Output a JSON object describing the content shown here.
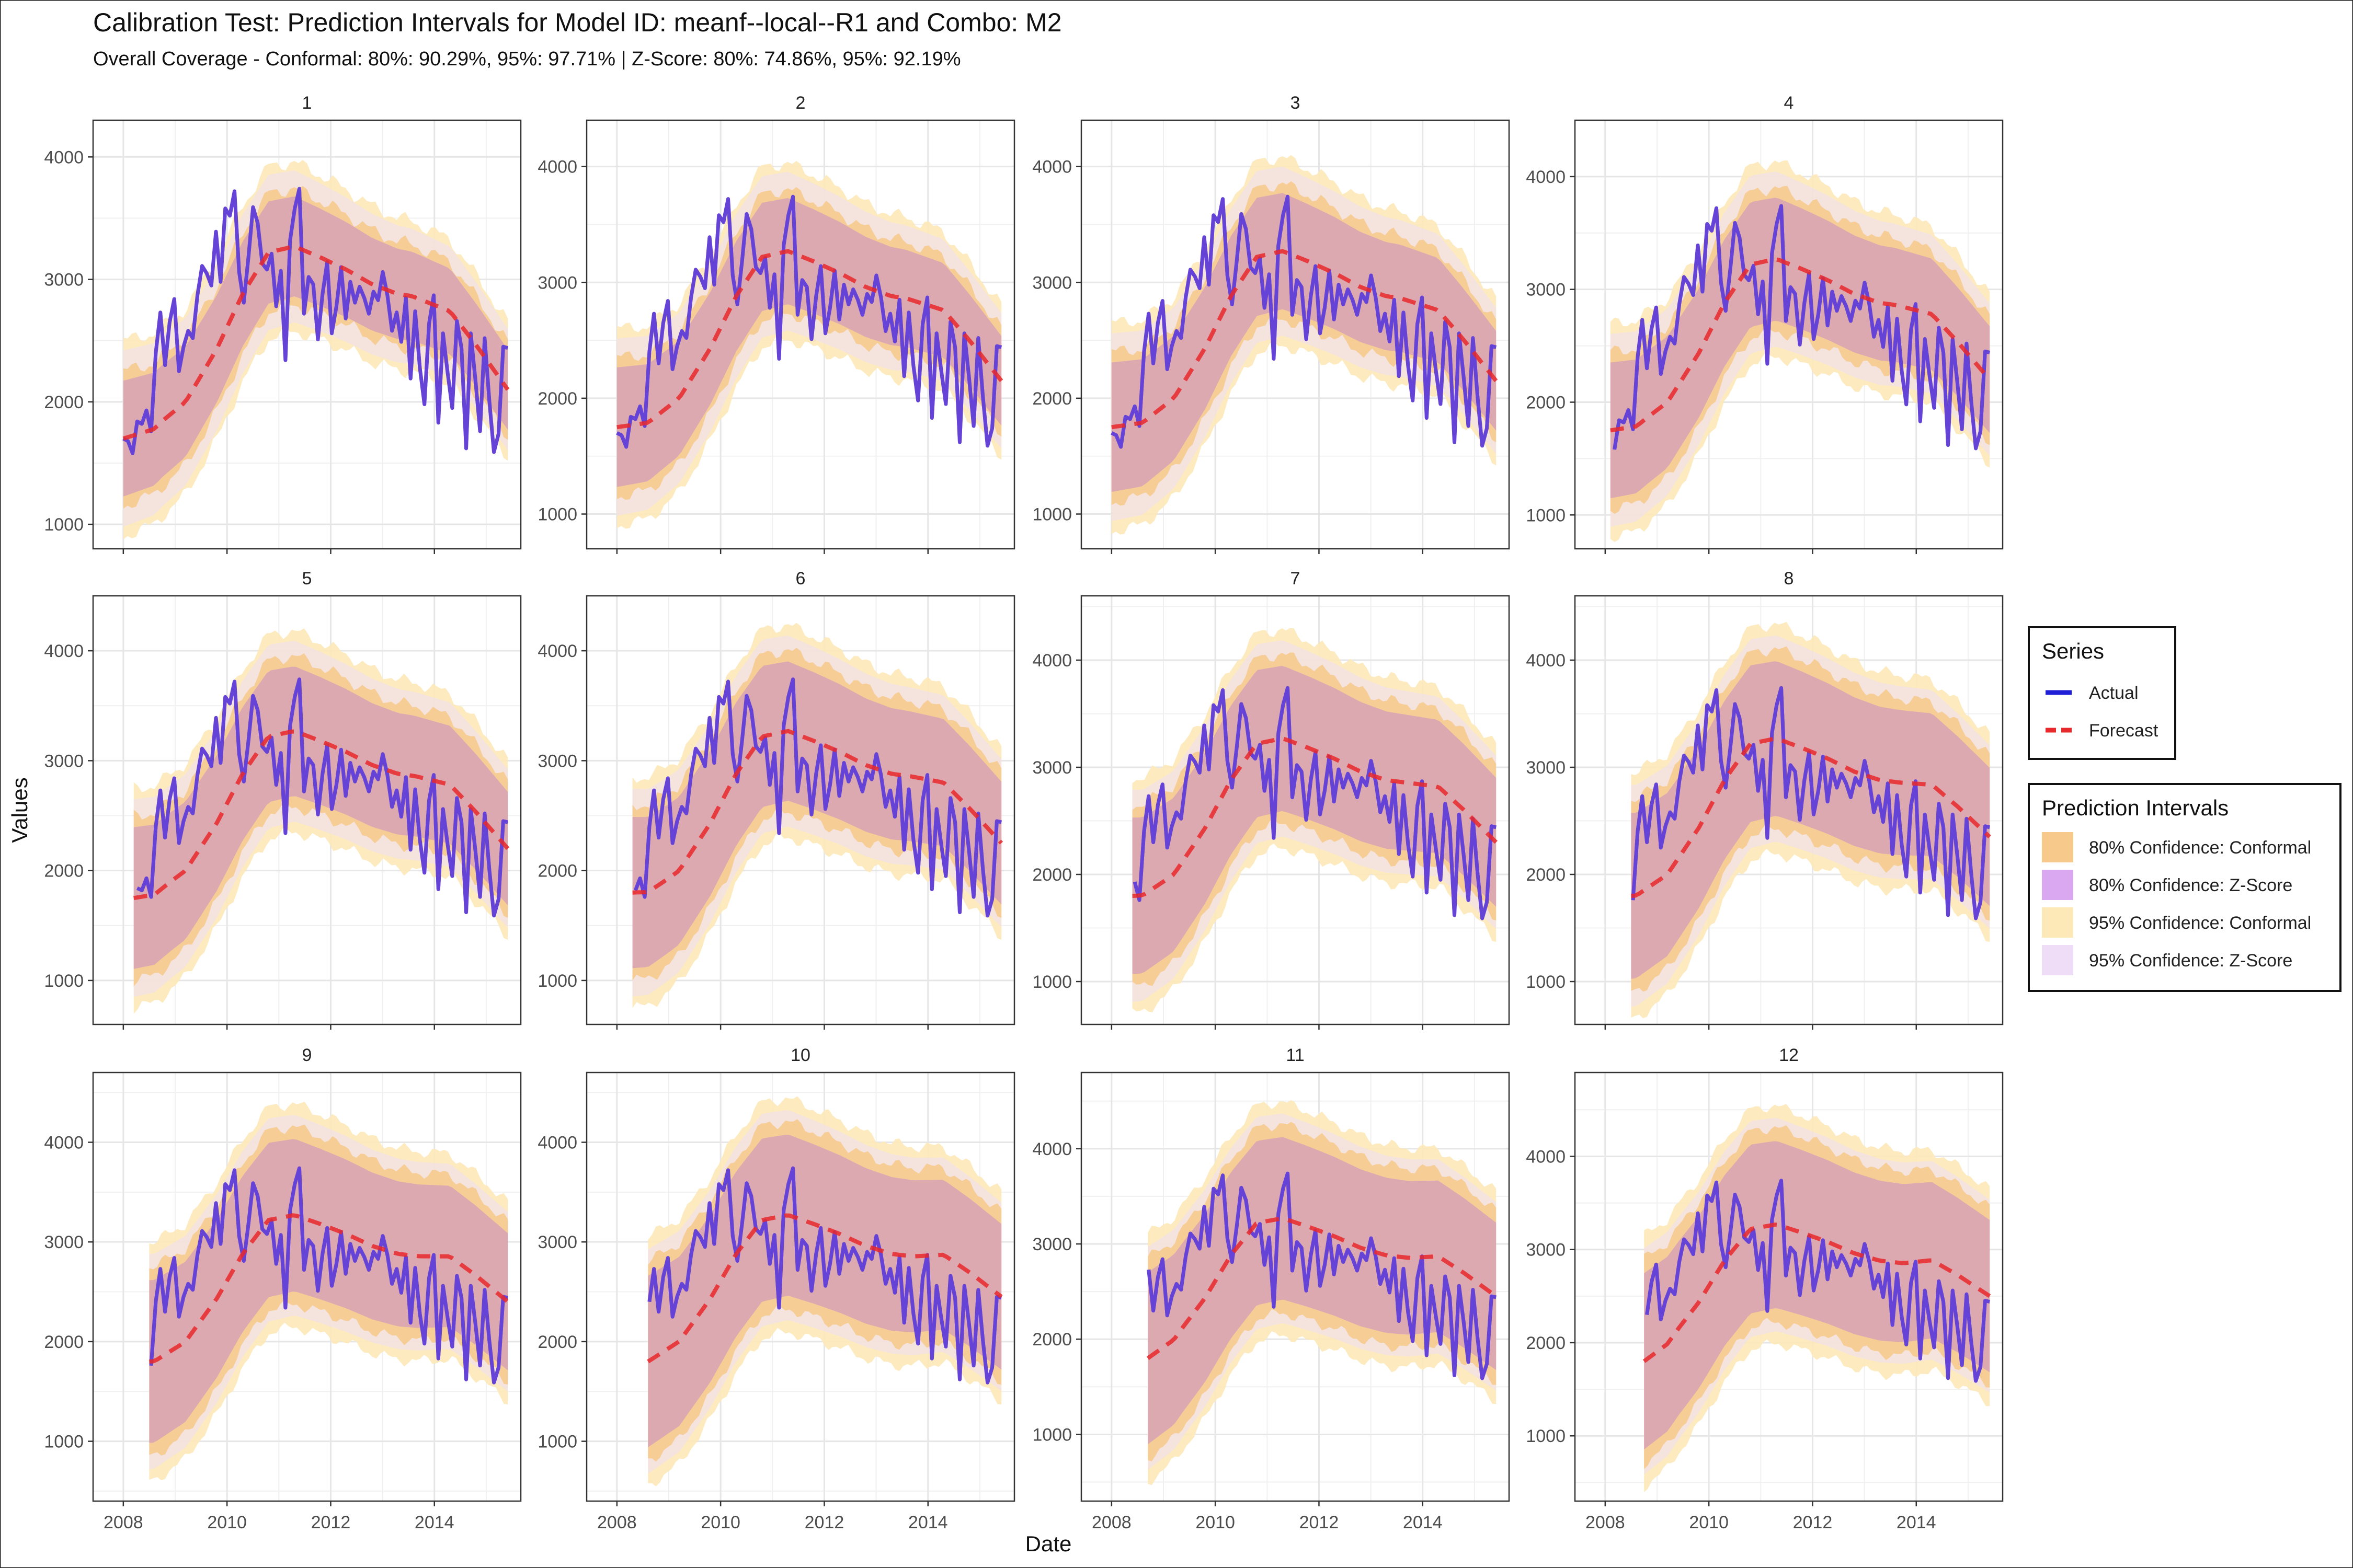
{
  "chart_data": {
    "type": "line",
    "title": "Calibration Test: Prediction Intervals for Model ID: meanf--local--R1 and Combo: M2",
    "subtitle": "Overall Coverage - Conformal: 80%: 90.29%, 95%: 97.71% | Z-Score: 80%: 74.86%, 95%: 92.19%",
    "xlabel": "Date",
    "ylabel": "Values",
    "x_ticks": [
      "2008",
      "2010",
      "2012",
      "2014"
    ],
    "xlim": [
      "2007-06",
      "2015-09"
    ],
    "grid": true,
    "legend_placement": "right",
    "legend_series": {
      "title": "Series",
      "entries": [
        {
          "label": "Actual",
          "color": "#1f1fd6",
          "style": "solid"
        },
        {
          "label": "Forecast",
          "color": "#e8282b",
          "style": "dashed"
        }
      ]
    },
    "legend_intervals": {
      "title": "Prediction Intervals",
      "entries": [
        {
          "label": "80% Confidence: Conformal",
          "color": "#f7c98a"
        },
        {
          "label": "80% Confidence: Z-Score",
          "color": "#d9a8f0"
        },
        {
          "label": "95% Confidence: Conformal",
          "color": "#fde9b8"
        },
        {
          "label": "95% Confidence: Z-Score",
          "color": "#efdcf7"
        }
      ]
    },
    "series_actual": {
      "name": "Actual",
      "x_start": "2008-01",
      "x_end": "2015-06",
      "values": [
        1700,
        1680,
        1580,
        1840,
        1820,
        1930,
        1760,
        2400,
        2730,
        2300,
        2650,
        2840,
        2250,
        2450,
        2580,
        2520,
        2870,
        3110,
        3050,
        2950,
        3390,
        2980,
        3580,
        3520,
        3720,
        3060,
        2810,
        3180,
        3590,
        3460,
        3130,
        3080,
        3210,
        2780,
        3070,
        2340,
        3320,
        3580,
        3740,
        2720,
        3020,
        2960,
        2510,
        2880,
        3140,
        2560,
        2780,
        3100,
        2680,
        2980,
        2810,
        2940,
        2850,
        2720,
        2900,
        2830,
        3060,
        2870,
        2580,
        2730,
        2490,
        2850,
        2190,
        2740,
        2280,
        1980,
        2640,
        2870,
        1830,
        2560,
        2240,
        1950,
        2660,
        2440,
        1620,
        2560,
        2180,
        1760,
        2520,
        2010,
        1590,
        1740,
        2450,
        2440
      ]
    },
    "series_forecast_avg": {
      "name": "Forecast",
      "x_start": "2008-01",
      "x_end": "2015-06",
      "points": [
        [
          2008.0,
          1760
        ],
        [
          2008.6,
          1790
        ],
        [
          2009.2,
          2000
        ],
        [
          2009.8,
          2430
        ],
        [
          2010.3,
          2880
        ],
        [
          2010.8,
          3220
        ],
        [
          2011.3,
          3270
        ],
        [
          2011.8,
          3180
        ],
        [
          2012.3,
          3080
        ],
        [
          2012.8,
          2960
        ],
        [
          2013.3,
          2880
        ],
        [
          2013.8,
          2850
        ],
        [
          2014.3,
          2820
        ],
        [
          2014.8,
          2600
        ],
        [
          2015.5,
          2260
        ]
      ]
    },
    "panels": [
      {
        "label": "1",
        "x_start": 2008.0,
        "ylim": [
          800,
          4300
        ],
        "y_ticks": [
          1000,
          2000,
          3000,
          4000
        ],
        "fc_base": 1700,
        "fc_mid": 2050,
        "fc_end": 2100,
        "conf80_width_start": 550,
        "conf80_width_end": 380,
        "conf95_width_start": 800,
        "conf95_width_end": 550
      },
      {
        "label": "2",
        "x_start": 2008.0,
        "ylim": [
          700,
          4400
        ],
        "y_ticks": [
          1000,
          2000,
          3000,
          4000
        ],
        "fc_base": 1750,
        "fc_mid": 2050,
        "fc_end": 2150,
        "conf80_width_start": 600,
        "conf80_width_end": 450,
        "conf95_width_start": 850,
        "conf95_width_end": 650
      },
      {
        "label": "3",
        "x_start": 2008.0,
        "ylim": [
          700,
          4400
        ],
        "y_ticks": [
          1000,
          2000,
          3000,
          4000
        ],
        "fc_base": 1750,
        "fc_mid": 2100,
        "fc_end": 2150,
        "conf80_width_start": 650,
        "conf80_width_end": 500,
        "conf95_width_start": 900,
        "conf95_width_end": 700
      },
      {
        "label": "4",
        "x_start": 2008.1,
        "ylim": [
          700,
          4500
        ],
        "y_ticks": [
          1000,
          2000,
          3000,
          4000
        ],
        "fc_base": 1750,
        "fc_mid": 2100,
        "fc_end": 2200,
        "conf80_width_start": 700,
        "conf80_width_end": 550,
        "conf95_width_start": 950,
        "conf95_width_end": 750
      },
      {
        "label": "5",
        "x_start": 2008.2,
        "ylim": [
          600,
          4500
        ],
        "y_ticks": [
          1000,
          2000,
          3000,
          4000
        ],
        "fc_base": 1750,
        "fc_mid": 2100,
        "fc_end": 2200,
        "conf80_width_start": 750,
        "conf80_width_end": 600,
        "conf95_width_start": 1000,
        "conf95_width_end": 800
      },
      {
        "label": "6",
        "x_start": 2008.3,
        "ylim": [
          600,
          4500
        ],
        "y_ticks": [
          1000,
          2000,
          3000,
          4000
        ],
        "fc_base": 1800,
        "fc_mid": 2150,
        "fc_end": 2250,
        "conf80_width_start": 800,
        "conf80_width_end": 650,
        "conf95_width_start": 1050,
        "conf95_width_end": 850
      },
      {
        "label": "7",
        "x_start": 2008.4,
        "ylim": [
          600,
          4600
        ],
        "y_ticks": [
          1000,
          2000,
          3000,
          4000
        ],
        "fc_base": 1800,
        "fc_mid": 2150,
        "fc_end": 2300,
        "conf80_width_start": 850,
        "conf80_width_end": 700,
        "conf95_width_start": 1100,
        "conf95_width_end": 900
      },
      {
        "label": "8",
        "x_start": 2008.5,
        "ylim": [
          600,
          4600
        ],
        "y_ticks": [
          1000,
          2000,
          3000,
          4000
        ],
        "fc_base": 1800,
        "fc_mid": 2150,
        "fc_end": 2350,
        "conf80_width_start": 900,
        "conf80_width_end": 750,
        "conf95_width_start": 1150,
        "conf95_width_end": 950
      },
      {
        "label": "9",
        "x_start": 2008.5,
        "ylim": [
          400,
          4700
        ],
        "y_ticks": [
          1000,
          2000,
          3000,
          4000
        ],
        "fc_base": 1800,
        "fc_mid": 2200,
        "fc_end": 2400,
        "conf80_width_start": 950,
        "conf80_width_end": 800,
        "conf95_width_start": 1200,
        "conf95_width_end": 1000
      },
      {
        "label": "10",
        "x_start": 2008.6,
        "ylim": [
          400,
          4700
        ],
        "y_ticks": [
          1000,
          2000,
          3000,
          4000
        ],
        "fc_base": 1800,
        "fc_mid": 2200,
        "fc_end": 2450,
        "conf80_width_start": 1000,
        "conf80_width_end": 850,
        "conf95_width_start": 1250,
        "conf95_width_end": 1050
      },
      {
        "label": "11",
        "x_start": 2008.7,
        "ylim": [
          300,
          4800
        ],
        "y_ticks": [
          1000,
          2000,
          3000,
          4000
        ],
        "fc_base": 1800,
        "fc_mid": 2200,
        "fc_end": 2450,
        "conf80_width_start": 1050,
        "conf80_width_end": 900,
        "conf95_width_start": 1300,
        "conf95_width_end": 1100
      },
      {
        "label": "12",
        "x_start": 2008.75,
        "ylim": [
          300,
          4900
        ],
        "y_ticks": [
          1000,
          2000,
          3000,
          4000
        ],
        "fc_base": 1800,
        "fc_mid": 2200,
        "fc_end": 2500,
        "conf80_width_start": 1100,
        "conf80_width_end": 950,
        "conf95_width_start": 1350,
        "conf95_width_end": 1150
      }
    ]
  }
}
